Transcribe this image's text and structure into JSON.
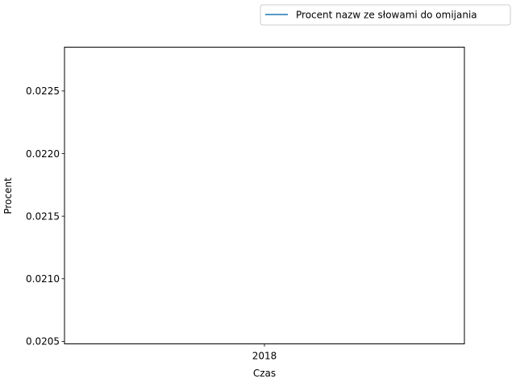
{
  "chart_data": {
    "type": "line",
    "title": "",
    "xlabel": "Czas",
    "ylabel": "Procent",
    "x_ticks": [
      "2018"
    ],
    "y_ticks": [
      0.0205,
      0.021,
      0.0215,
      0.022,
      0.0225
    ],
    "y_tick_labels": [
      "0.0205",
      "0.0210",
      "0.0215",
      "0.0220",
      "0.0225"
    ],
    "ylim": [
      0.02048,
      0.02285
    ],
    "grid": false,
    "legend": {
      "placement": "top-right, outside axes"
    },
    "series": [
      {
        "name": "Procent nazw ze słowami do omijania",
        "color": "#1f77b4",
        "x": [
          "2018"
        ],
        "values": [
          null
        ]
      }
    ]
  }
}
